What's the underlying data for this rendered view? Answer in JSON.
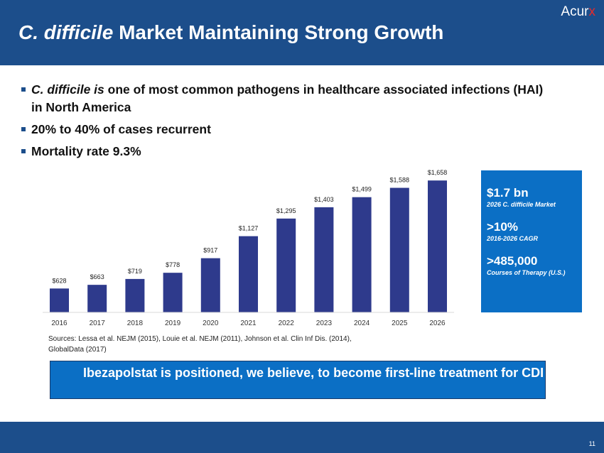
{
  "header": {
    "title_italic": "C. difficile",
    "title_rest": " Market Maintaining Strong Growth",
    "logo_main": "Acur",
    "logo_accent": "x",
    "logo_accent_color": "#e52b2b"
  },
  "bullets": [
    {
      "italic": "C. difficile is",
      "text": " one of most common pathogens in healthcare associated infections (HAI) in North America"
    },
    {
      "italic": "",
      "text": "20% to 40% of cases recurrent"
    },
    {
      "italic": "",
      "text": "Mortality rate 9.3%"
    }
  ],
  "chart_data": {
    "type": "bar",
    "title": "",
    "xlabel": "",
    "ylabel": "",
    "categories": [
      "2016",
      "2017",
      "2018",
      "2019",
      "2020",
      "2021",
      "2022",
      "2023",
      "2024",
      "2025",
      "2026"
    ],
    "values": [
      628,
      663,
      719,
      778,
      917,
      1127,
      1295,
      1403,
      1499,
      1588,
      1658
    ],
    "labels": [
      "$628",
      "$663",
      "$719",
      "$778",
      "$917",
      "$1,127",
      "$1,295",
      "$1,403",
      "$1,499",
      "$1,588",
      "$1,658"
    ],
    "bar_color": "#2e3a8c",
    "ylim": [
      400,
      1700
    ],
    "grid": false
  },
  "sources": "Sources: Lessa et al. NEJM (2015), Louie et al. NEJM (2011), Johnson et al. Clin Inf Dis. (2014), GlobalData (2017)",
  "stats": [
    {
      "value": "$1.7 bn",
      "label": "2026 C. difficile Market"
    },
    {
      "value": ">10%",
      "label": "2016-2026 CAGR"
    },
    {
      "value": ">485,000",
      "label": "Courses of Therapy (U.S.)"
    }
  ],
  "callout": "Ibezapolstat is positioned, we believe, to become first-line treatment for CDI",
  "page_number": "11"
}
